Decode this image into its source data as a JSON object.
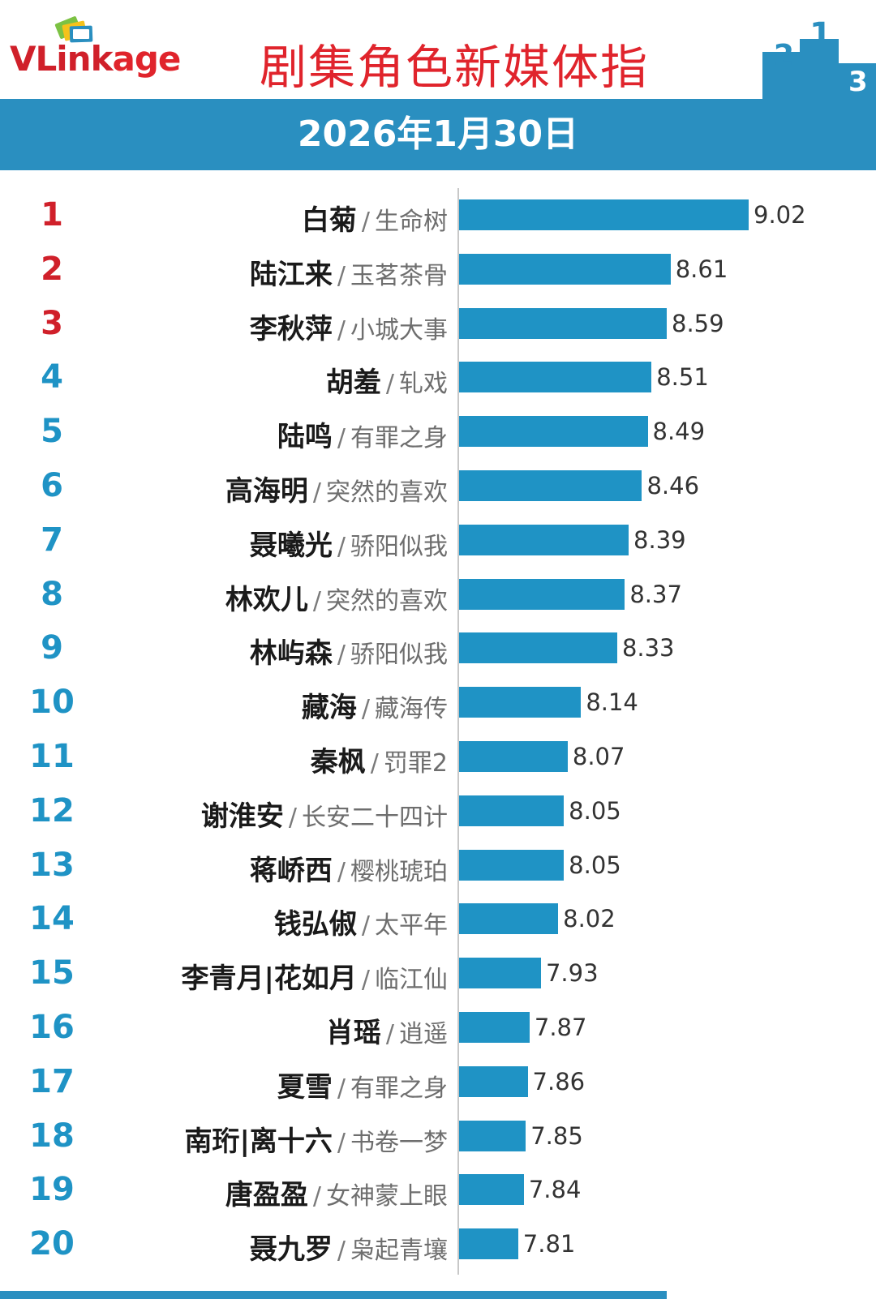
{
  "header": {
    "logo_text_v": "V",
    "logo_text_link": "Link",
    "logo_text_age": "age",
    "title": "剧集角色新媒体指",
    "date": "2026年1月30日"
  },
  "colors": {
    "accent_blue": "#1f93c5",
    "header_band": "#2a8fc0",
    "title_red": "#e0242c",
    "top3_rank": "#d0202a",
    "other_rank": "#1f93c5"
  },
  "chart_data": {
    "type": "bar",
    "orientation": "horizontal",
    "title": "剧集角色新媒体指",
    "subtitle": "2026年1月30日",
    "xlim": [
      7.5,
      9.1
    ],
    "rows": [
      {
        "rank": "1",
        "name": "白菊",
        "drama": "生命树",
        "value": 9.02,
        "label": "9.02"
      },
      {
        "rank": "2",
        "name": "陆江来",
        "drama": "玉茗茶骨",
        "value": 8.61,
        "label": "8.61"
      },
      {
        "rank": "3",
        "name": "李秋萍",
        "drama": "小城大事",
        "value": 8.59,
        "label": "8.59"
      },
      {
        "rank": "4",
        "name": "胡羞",
        "drama": "轧戏",
        "value": 8.51,
        "label": "8.51"
      },
      {
        "rank": "5",
        "name": "陆鸣",
        "drama": "有罪之身",
        "value": 8.49,
        "label": "8.49"
      },
      {
        "rank": "6",
        "name": "高海明",
        "drama": "突然的喜欢",
        "value": 8.46,
        "label": "8.46"
      },
      {
        "rank": "7",
        "name": "聂曦光",
        "drama": "骄阳似我",
        "value": 8.39,
        "label": "8.39"
      },
      {
        "rank": "8",
        "name": "林欢儿",
        "drama": "突然的喜欢",
        "value": 8.37,
        "label": "8.37"
      },
      {
        "rank": "9",
        "name": "林屿森",
        "drama": "骄阳似我",
        "value": 8.33,
        "label": "8.33"
      },
      {
        "rank": "10",
        "name": "藏海",
        "drama": "藏海传",
        "value": 8.14,
        "label": "8.14"
      },
      {
        "rank": "11",
        "name": "秦枫",
        "drama": "罚罪2",
        "value": 8.07,
        "label": "8.07"
      },
      {
        "rank": "12",
        "name": "谢淮安",
        "drama": "长安二十四计",
        "value": 8.05,
        "label": "8.05"
      },
      {
        "rank": "13",
        "name": "蒋峤西",
        "drama": "樱桃琥珀",
        "value": 8.05,
        "label": "8.05"
      },
      {
        "rank": "14",
        "name": "钱弘俶",
        "drama": "太平年",
        "value": 8.02,
        "label": "8.02"
      },
      {
        "rank": "15",
        "name": "李青月|花如月",
        "drama": "临江仙",
        "value": 7.93,
        "label": "7.93"
      },
      {
        "rank": "16",
        "name": "肖瑶",
        "drama": "逍遥",
        "value": 7.87,
        "label": "7.87"
      },
      {
        "rank": "17",
        "name": "夏雪",
        "drama": "有罪之身",
        "value": 7.86,
        "label": "7.86"
      },
      {
        "rank": "18",
        "name": "南珩|离十六",
        "drama": "书卷一梦",
        "value": 7.85,
        "label": "7.85"
      },
      {
        "rank": "19",
        "name": "唐盈盈",
        "drama": "女神蒙上眼",
        "value": 7.84,
        "label": "7.84"
      },
      {
        "rank": "20",
        "name": "聂九罗",
        "drama": "枭起青壤",
        "value": 7.81,
        "label": "7.81"
      }
    ]
  }
}
